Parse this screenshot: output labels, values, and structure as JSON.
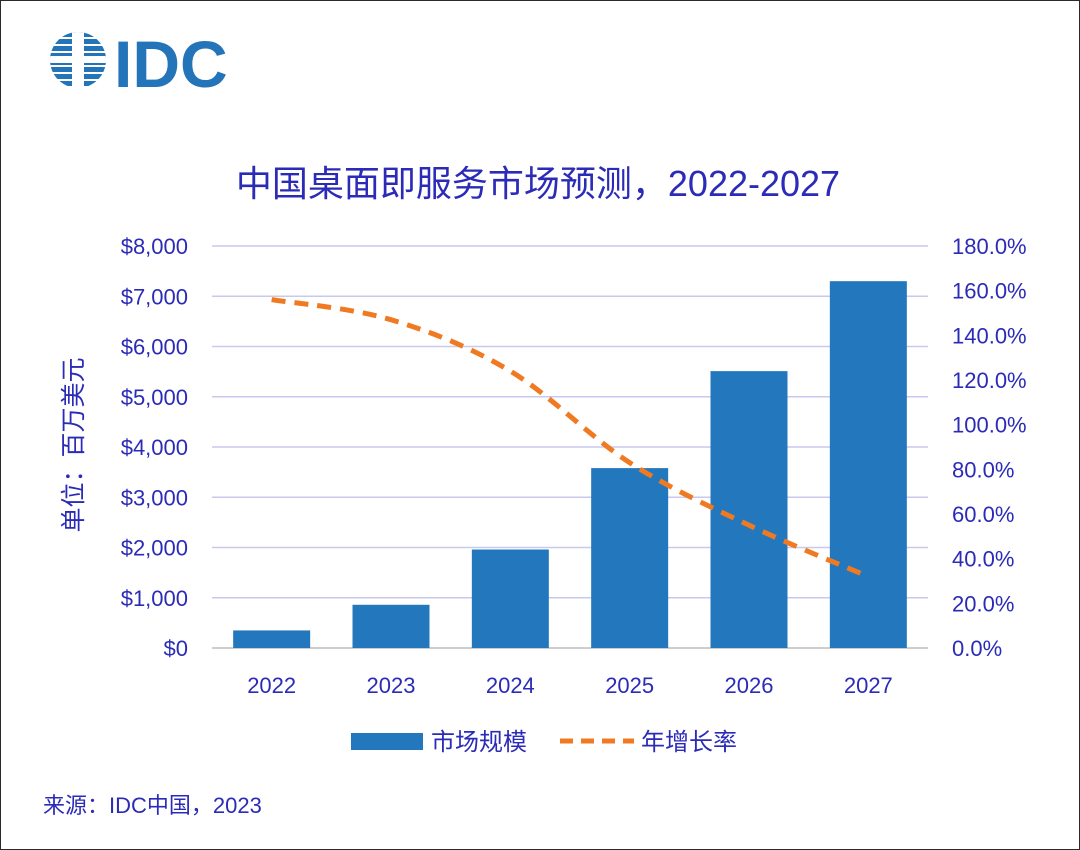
{
  "logo": {
    "text": "IDC",
    "color": "#2374B8"
  },
  "source": "来源：IDC中国，2023",
  "colors": {
    "bar": "#2378BD",
    "line": "#F07A22",
    "text": "#2B2BB8",
    "grid": "#C9C9EE",
    "axis": "#BDBDBD"
  },
  "chart_data": {
    "type": "bar",
    "title": "中国桌面即服务市场预测，2022-2027",
    "xlabel": "",
    "ylabel": "单位：百万美元",
    "categories": [
      "2022",
      "2023",
      "2024",
      "2025",
      "2026",
      "2027"
    ],
    "series": [
      {
        "name": "市场规模",
        "kind": "bar",
        "axis": "left",
        "values": [
          350,
          860,
          1960,
          3580,
          5510,
          7300
        ]
      },
      {
        "name": "年增长率",
        "kind": "line",
        "style": "dashed",
        "axis": "right",
        "values": [
          156.0,
          147.0,
          124.0,
          83.0,
          55.0,
          32.0
        ]
      }
    ],
    "ylim": [
      0,
      8000
    ],
    "ylim_right": [
      0,
      180
    ],
    "yticks": [
      "$0",
      "$1,000",
      "$2,000",
      "$3,000",
      "$4,000",
      "$5,000",
      "$6,000",
      "$7,000",
      "$8,000"
    ],
    "yticks_right": [
      "0.0%",
      "20.0%",
      "40.0%",
      "60.0%",
      "80.0%",
      "100.0%",
      "120.0%",
      "140.0%",
      "160.0%",
      "180.0%"
    ],
    "grid": true,
    "legend": "bottom-center"
  }
}
